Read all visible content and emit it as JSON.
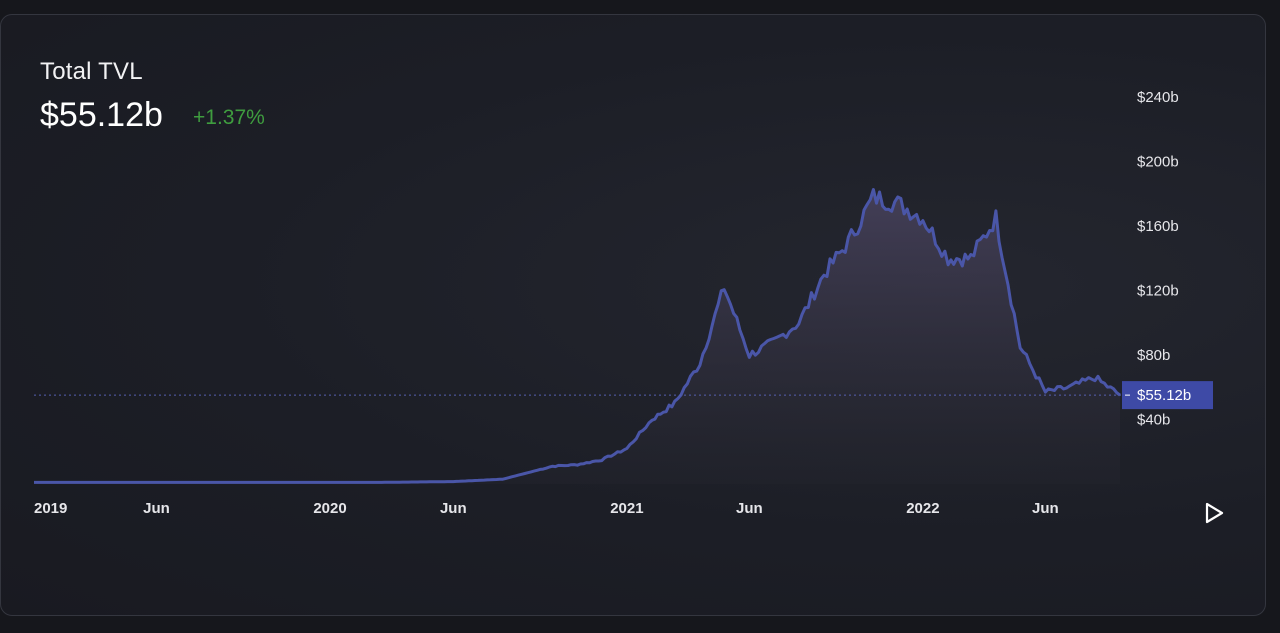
{
  "header": {
    "title": "Total TVL",
    "value": "$55.12b",
    "change": "+1.37%"
  },
  "colors": {
    "line": "#4a56a8",
    "change_positive": "#3f9d3f",
    "current_badge": "#3e4aa6",
    "background": "#1c1e26"
  },
  "controls": {
    "play_icon": "play-icon"
  },
  "chart_data": {
    "type": "area",
    "title": "",
    "xlabel": "",
    "ylabel": "",
    "ylim": [
      0,
      240
    ],
    "y_unit": "billion USD",
    "y_ticks": [
      "$40b",
      "$80b",
      "$120b",
      "$160b",
      "$200b",
      "$240b"
    ],
    "x_ticks": [
      "2019",
      "Jun",
      "2020",
      "Jun",
      "2021",
      "Jun",
      "2022",
      "Jun"
    ],
    "current_value_label": "$55.12b",
    "current_value": 55.12,
    "grid": false,
    "series": [
      {
        "x": [
          "2019-01",
          "2019-06",
          "2019-12",
          "2020-03",
          "2020-06",
          "2020-08",
          "2020-09",
          "2020-10",
          "2020-11",
          "2020-12",
          "2021-01",
          "2021-02",
          "2021-03",
          "2021-04",
          "2021-05",
          "2021-06",
          "2021-07",
          "2021-08",
          "2021-09",
          "2021-10",
          "2021-11",
          "2021-12",
          "2022-01",
          "2022-02",
          "2022-03",
          "2022-04",
          "2022-05",
          "2022-06",
          "2022-07",
          "2022-08",
          "2022-09"
        ],
        "values": [
          1,
          1,
          1,
          1,
          1.5,
          3,
          7,
          11,
          12,
          15,
          22,
          40,
          50,
          75,
          122,
          80,
          88,
          100,
          130,
          150,
          178,
          174,
          165,
          140,
          140,
          165,
          85,
          57,
          60,
          66,
          55.12
        ]
      }
    ]
  }
}
